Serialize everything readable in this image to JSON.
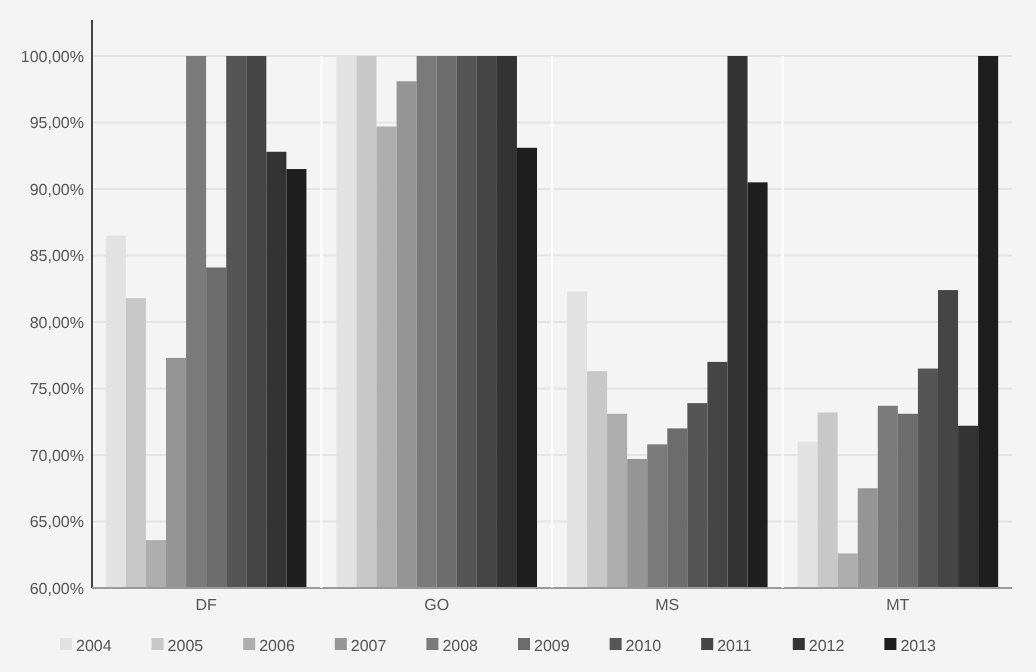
{
  "chart_data": {
    "type": "bar",
    "categories": [
      "DF",
      "GO",
      "MS",
      "MT"
    ],
    "series": [
      {
        "name": "2004",
        "color": "#e2e2e2",
        "values": [
          86.5,
          100,
          82.3,
          71.0
        ]
      },
      {
        "name": "2005",
        "color": "#c8c8c8",
        "values": [
          81.8,
          100,
          76.3,
          73.2
        ]
      },
      {
        "name": "2006",
        "color": "#adadad",
        "values": [
          63.6,
          94.7,
          73.1,
          62.6
        ]
      },
      {
        "name": "2007",
        "color": "#959595",
        "values": [
          77.3,
          98.1,
          69.7,
          67.5
        ]
      },
      {
        "name": "2008",
        "color": "#7a7a7a",
        "values": [
          100,
          100,
          70.8,
          73.7
        ]
      },
      {
        "name": "2009",
        "color": "#6c6c6c",
        "values": [
          84.1,
          100,
          72.0,
          73.1
        ]
      },
      {
        "name": "2010",
        "color": "#555555",
        "values": [
          100,
          100,
          73.9,
          76.5
        ]
      },
      {
        "name": "2011",
        "color": "#454545",
        "values": [
          100,
          100,
          77.0,
          82.4
        ]
      },
      {
        "name": "2012",
        "color": "#333333",
        "values": [
          92.8,
          100,
          100,
          72.2
        ]
      },
      {
        "name": "2013",
        "color": "#1e1e1e",
        "values": [
          91.5,
          93.1,
          90.5,
          100
        ]
      }
    ],
    "ylim": [
      60,
      100
    ],
    "yticks": [
      {
        "value": 60,
        "label": "60,00%"
      },
      {
        "value": 65,
        "label": "65,00%"
      },
      {
        "value": 70,
        "label": "70,00%"
      },
      {
        "value": 75,
        "label": "75,00%"
      },
      {
        "value": 80,
        "label": "80,00%"
      },
      {
        "value": 85,
        "label": "85,00%"
      },
      {
        "value": 90,
        "label": "90,00%"
      },
      {
        "value": 95,
        "label": "95,00%"
      },
      {
        "value": 100,
        "label": "100,00%"
      }
    ],
    "grid": "y",
    "legend": "bottom"
  }
}
